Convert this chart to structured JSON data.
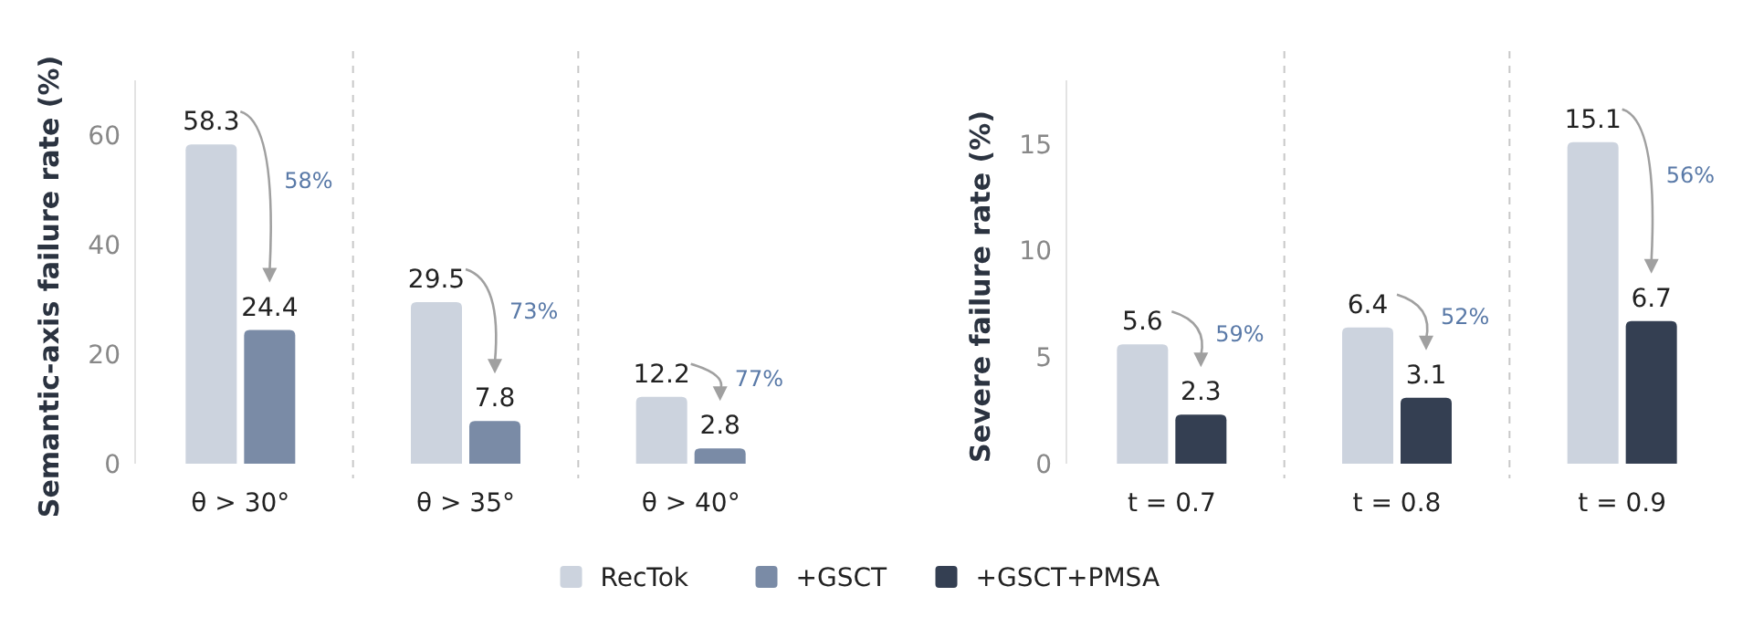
{
  "chart_data": [
    {
      "type": "bar",
      "ylabel": "Semantic-axis failure rate (%)",
      "categories": [
        "θ > 30°",
        "θ > 35°",
        "θ > 40°"
      ],
      "ylim": [
        0,
        70
      ],
      "yticks": [
        0,
        20,
        40,
        60
      ],
      "grid": false,
      "legend": "bottom",
      "data_labels": true,
      "series": [
        {
          "name": "RecTok",
          "color": "#ccd3de",
          "values": [
            58.3,
            29.5,
            12.2
          ]
        },
        {
          "name": "+GSCT",
          "color": "#7a8ba6",
          "values": [
            24.4,
            7.8,
            2.8
          ]
        }
      ],
      "annotations": [
        "58%",
        "73%",
        "77%"
      ]
    },
    {
      "type": "bar",
      "ylabel": "Severe failure rate (%)",
      "categories": [
        "t = 0.7",
        "t = 0.8",
        "t = 0.9"
      ],
      "ylim": [
        0,
        18
      ],
      "yticks": [
        0,
        5,
        10,
        15
      ],
      "grid": false,
      "legend": "bottom",
      "data_labels": true,
      "series": [
        {
          "name": "RecTok",
          "color": "#ccd3de",
          "values": [
            5.6,
            6.4,
            15.1
          ]
        },
        {
          "name": "+GSCT+PMSA",
          "color": "#343f52",
          "values": [
            2.3,
            3.1,
            6.7
          ]
        }
      ],
      "annotations": [
        "59%",
        "52%",
        "56%"
      ]
    }
  ]
}
